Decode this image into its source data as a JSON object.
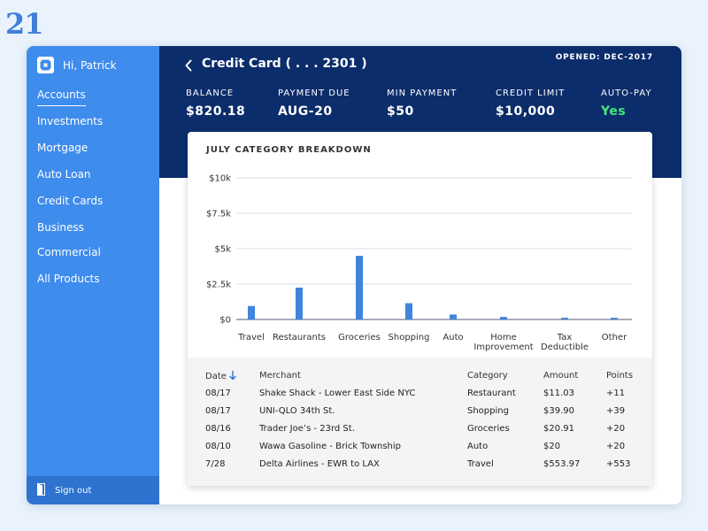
{
  "page_number": "21",
  "colors": {
    "sidebar": "#3e8cec",
    "header": "#0c2d6b",
    "bar": "#3f85dc",
    "autopay": "#46e87a"
  },
  "sidebar": {
    "greeting": "Hi, Patrick",
    "brand_icon": "bank-logo-icon",
    "items": [
      {
        "label": "Accounts",
        "active": true
      },
      {
        "label": "Investments"
      },
      {
        "label": "Mortgage"
      },
      {
        "label": "Auto Loan"
      },
      {
        "label": "Credit Cards"
      },
      {
        "label": "Business"
      },
      {
        "label": "Commercial"
      },
      {
        "label": "All Products"
      }
    ],
    "signout": {
      "label": "Sign out",
      "icon": "door-exit-icon"
    }
  },
  "header": {
    "back_icon": "chevron-left-icon",
    "title": "Credit Card ( . . . 2301 )",
    "opened": "OPENED: DEC-2017",
    "stats": [
      {
        "label": "BALANCE",
        "value": "$820.18"
      },
      {
        "label": "PAYMENT DUE",
        "value": "AUG-20"
      },
      {
        "label": "MIN PAYMENT",
        "value": "$50"
      },
      {
        "label": "CREDIT LIMIT",
        "value": "$10,000"
      },
      {
        "label": "AUTO-PAY",
        "value": "Yes"
      }
    ]
  },
  "breakdown": {
    "title": "JULY CATEGORY BREAKDOWN"
  },
  "chart_data": {
    "type": "bar",
    "title": "JULY CATEGORY BREAKDOWN",
    "categories": [
      "Travel",
      "Restaurants",
      "Groceries",
      "Shopping",
      "Auto",
      "Home Improvement",
      "Tax Deductible",
      "Other"
    ],
    "category_lines": [
      [
        "Travel"
      ],
      [
        "Restaurants"
      ],
      [
        "Groceries"
      ],
      [
        "Shopping"
      ],
      [
        "Auto"
      ],
      [
        "Home",
        "Improvement"
      ],
      [
        "Tax",
        "Deductible"
      ],
      [
        "Other"
      ]
    ],
    "values": [
      950,
      2250,
      4500,
      1150,
      350,
      180,
      120,
      120
    ],
    "ylim": [
      0,
      10000
    ],
    "yticks": [
      0,
      2500,
      5000,
      7500,
      10000
    ],
    "ytick_labels": [
      "$0",
      "$2.5k",
      "$5k",
      "$7.5k",
      "$10k"
    ],
    "grid": true,
    "xlabel": "",
    "ylabel": ""
  },
  "transactions": {
    "headers": {
      "date": "Date",
      "merchant": "Merchant",
      "category": "Category",
      "amount": "Amount",
      "points": "Points"
    },
    "sort_icon": "arrow-down-icon",
    "rows": [
      {
        "date": "08/17",
        "merchant": "Shake Shack - Lower East Side NYC",
        "category": "Restaurant",
        "amount": "$11.03",
        "points": "+11"
      },
      {
        "date": "08/17",
        "merchant": "UNI-QLO 34th St.",
        "category": "Shopping",
        "amount": "$39.90",
        "points": "+39"
      },
      {
        "date": "08/16",
        "merchant": "Trader Joe’s - 23rd St.",
        "category": "Groceries",
        "amount": "$20.91",
        "points": "+20"
      },
      {
        "date": "08/10",
        "merchant": "Wawa Gasoline - Brick Township",
        "category": "Auto",
        "amount": "$20",
        "points": "+20"
      },
      {
        "date": "7/28",
        "merchant": "Delta Airlines - EWR to LAX",
        "category": "Travel",
        "amount": "$553.97",
        "points": "+553"
      }
    ]
  }
}
